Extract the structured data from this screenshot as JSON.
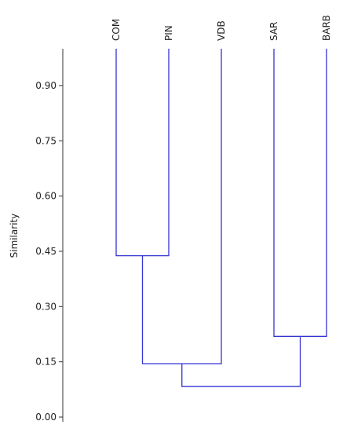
{
  "chart_data": {
    "type": "dendrogram",
    "y_label": "Similarity",
    "leaves": [
      {
        "label": "COM",
        "color": "#ff00ff"
      },
      {
        "label": "PIN",
        "color": "#2a9a2a"
      },
      {
        "label": "VDB",
        "color": "#7fd0f0"
      },
      {
        "label": "SAR",
        "color": "#ff3030"
      },
      {
        "label": "BARB",
        "color": "#2020c0"
      }
    ],
    "merges": [
      {
        "left": 0,
        "right": 1,
        "height": 0.438
      },
      {
        "left": 3,
        "right": 4,
        "height": 0.219
      },
      {
        "left": 5,
        "right": 2,
        "height": 0.145
      },
      {
        "left": 7,
        "right": 6,
        "height": 0.083
      }
    ],
    "line_color": "#3434d4",
    "ylim": [
      0,
      1
    ],
    "yticks": [
      {
        "value": 0,
        "label": "0.00"
      },
      {
        "value": 0.15,
        "label": "0.15"
      },
      {
        "value": 0.3,
        "label": "0.30"
      },
      {
        "value": 0.45,
        "label": "0.45"
      },
      {
        "value": 0.6,
        "label": "0.60"
      },
      {
        "value": 0.75,
        "label": "0.75"
      },
      {
        "value": 0.9,
        "label": "0.90"
      }
    ]
  }
}
